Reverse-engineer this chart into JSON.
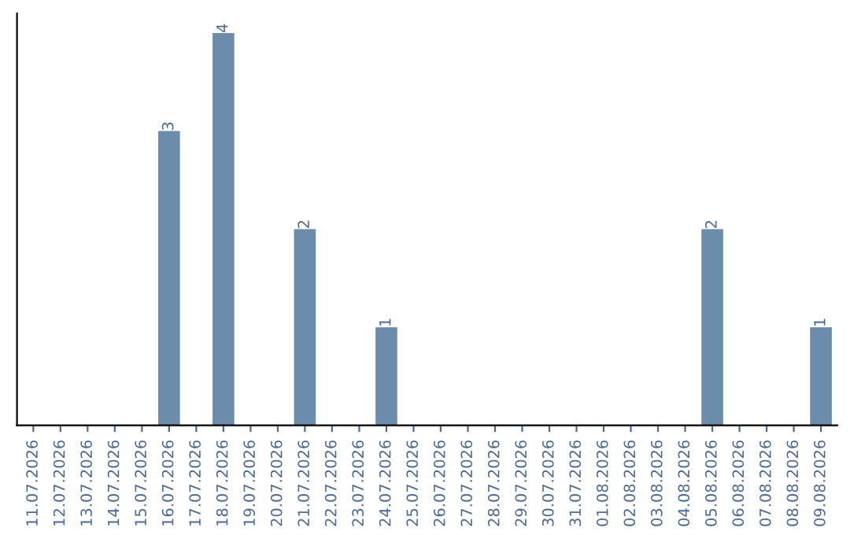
{
  "chart_data": {
    "type": "bar",
    "categories": [
      "11.07.2026",
      "12.07.2026",
      "13.07.2026",
      "14.07.2026",
      "15.07.2026",
      "16.07.2026",
      "17.07.2026",
      "18.07.2026",
      "19.07.2026",
      "20.07.2026",
      "21.07.2026",
      "22.07.2026",
      "23.07.2026",
      "24.07.2026",
      "25.07.2026",
      "26.07.2026",
      "27.07.2026",
      "28.07.2026",
      "29.07.2026",
      "30.07.2026",
      "31.07.2026",
      "01.08.2026",
      "02.08.2026",
      "03.08.2026",
      "04.08.2026",
      "05.08.2026",
      "06.08.2026",
      "07.08.2026",
      "08.08.2026",
      "09.08.2026"
    ],
    "values": [
      0,
      0,
      0,
      0,
      0,
      3,
      0,
      4,
      0,
      0,
      2,
      0,
      0,
      1,
      0,
      0,
      0,
      0,
      0,
      0,
      0,
      0,
      0,
      0,
      0,
      2,
      0,
      0,
      0,
      1
    ],
    "value_labels": [
      null,
      null,
      null,
      null,
      null,
      "3",
      null,
      "4",
      null,
      null,
      "2",
      null,
      null,
      "1",
      null,
      null,
      null,
      null,
      null,
      null,
      null,
      null,
      null,
      null,
      null,
      "2",
      null,
      null,
      null,
      "1"
    ],
    "color": "#6b8cab",
    "grid": false,
    "legend": false
  }
}
